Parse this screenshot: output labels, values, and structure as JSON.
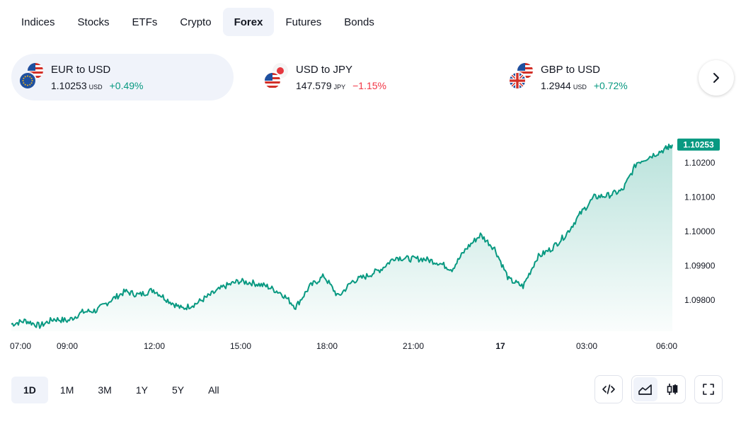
{
  "tabs": [
    {
      "label": "Indices",
      "active": false
    },
    {
      "label": "Stocks",
      "active": false
    },
    {
      "label": "ETFs",
      "active": false
    },
    {
      "label": "Crypto",
      "active": false
    },
    {
      "label": "Forex",
      "active": true
    },
    {
      "label": "Futures",
      "active": false
    },
    {
      "label": "Bonds",
      "active": false
    }
  ],
  "pairs": [
    {
      "name": "EUR to USD",
      "price": "1.10253",
      "unit": "USD",
      "change": "+0.49%",
      "direction": "up",
      "flags": [
        "us-flag-icon",
        "eu-flag-icon"
      ]
    },
    {
      "name": "USD to JPY",
      "price": "147.579",
      "unit": "JPY",
      "change": "−1.15%",
      "direction": "down",
      "flags": [
        "jp-flag-icon",
        "us-flag-icon"
      ]
    },
    {
      "name": "GBP to USD",
      "price": "1.2944",
      "unit": "USD",
      "change": "+0.72%",
      "direction": "up",
      "flags": [
        "us-flag-icon",
        "uk-flag-icon"
      ]
    }
  ],
  "colors": {
    "up": "#089981",
    "down": "#f23645",
    "line": "#089981",
    "active_bg": "#f0f3fa"
  },
  "chart_data": {
    "type": "area",
    "x_ticks": [
      "07:00",
      "09:00",
      "12:00",
      "15:00",
      "18:00",
      "21:00",
      "17",
      "03:00",
      "06:00"
    ],
    "y_ticks": [
      "1.10200",
      "1.10100",
      "1.10000",
      "1.09900",
      "1.09800"
    ],
    "ylim": [
      1.0972,
      1.1034
    ],
    "last_value": "1.10253",
    "grid": false,
    "series": [
      {
        "x": [
          "07:00",
          "07:30",
          "08:00",
          "08:30",
          "09:00",
          "09:30",
          "10:00",
          "10:30",
          "11:00",
          "11:30",
          "12:00",
          "12:30",
          "13:00",
          "13:30",
          "14:00",
          "14:30",
          "15:00",
          "15:30",
          "16:00",
          "16:30",
          "17:00",
          "17:30",
          "18:00",
          "18:30",
          "19:00",
          "19:30",
          "20:00",
          "20:30",
          "21:00",
          "21:30",
          "22:00",
          "22:30",
          "23:00",
          "23:30",
          "00:00",
          "00:30",
          "01:00",
          "01:30",
          "02:00",
          "02:30",
          "03:00",
          "03:30",
          "04:00",
          "04:30",
          "05:00",
          "05:30",
          "06:00",
          "06:15"
        ],
        "values": [
          1.0973,
          1.0974,
          1.09725,
          1.09745,
          1.0974,
          1.09765,
          1.0977,
          1.098,
          1.09825,
          1.09815,
          1.0983,
          1.098,
          1.09775,
          1.0979,
          1.09815,
          1.0984,
          1.09855,
          1.0985,
          1.0984,
          1.0982,
          1.0978,
          1.0984,
          1.0987,
          1.0981,
          1.09855,
          1.0987,
          1.0989,
          1.09925,
          1.0992,
          1.0992,
          1.0991,
          1.0989,
          1.0995,
          1.0999,
          1.0995,
          1.0986,
          1.0984,
          1.09925,
          1.0995,
          1.0999,
          1.1005,
          1.101,
          1.10105,
          1.1012,
          1.102,
          1.1022,
          1.1024,
          1.10253
        ]
      }
    ]
  },
  "ranges": [
    {
      "label": "1D",
      "active": true
    },
    {
      "label": "1M",
      "active": false
    },
    {
      "label": "3M",
      "active": false
    },
    {
      "label": "1Y",
      "active": false
    },
    {
      "label": "5Y",
      "active": false
    },
    {
      "label": "All",
      "active": false
    }
  ],
  "tools": {
    "embed": "embed-code-icon",
    "area": "area-chart-icon",
    "candles": "candlestick-icon",
    "fullscreen": "fullscreen-icon"
  }
}
